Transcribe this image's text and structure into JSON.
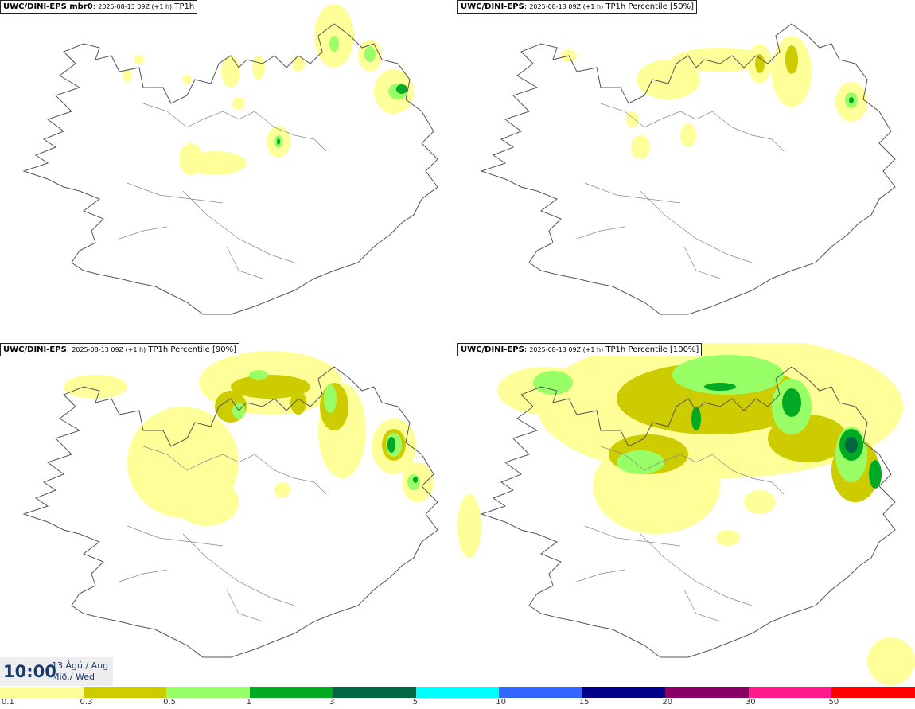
{
  "panels": [
    {
      "model": "UWC/DINI-EPS mbr0",
      "run": "2025-08-13 09Z (+1 h)",
      "field": "TP1h"
    },
    {
      "model": "UWC/DINI-EPS",
      "run": "2025-08-13 09Z (+1 h)",
      "field": "TP1h Percentile [50%]"
    },
    {
      "model": "UWC/DINI-EPS",
      "run": "2025-08-13 09Z (+1 h)",
      "field": "TP1h Percentile [90%]"
    },
    {
      "model": "UWC/DINI-EPS",
      "run": "2025-08-13 09Z (+1 h)",
      "field": "TP1h Percentile [100%]"
    }
  ],
  "clock": {
    "time": "10:00",
    "date": "13.Ágú./ Aug",
    "day": "Mið./ Wed"
  },
  "legend": {
    "colors": [
      "#ffff99",
      "#cccc00",
      "#99ff66",
      "#00aa22",
      "#006644",
      "#00ffff",
      "#3366ff",
      "#000088",
      "#880066",
      "#ff1a8c",
      "#ff0000"
    ],
    "ticks": [
      "0.1",
      "0.3",
      "0.5",
      "1",
      "3",
      "5",
      "10",
      "15",
      "20",
      "30",
      "50"
    ]
  }
}
